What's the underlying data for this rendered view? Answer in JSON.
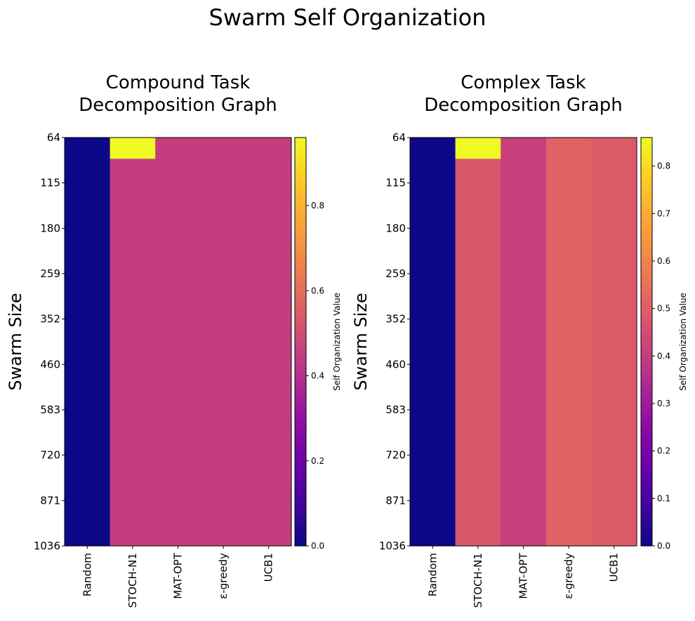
{
  "figure_title": "Swarm Self Organization",
  "chart_data": [
    {
      "type": "heatmap",
      "title": [
        "Compound Task",
        "Decomposition Graph"
      ],
      "ylabel": "Swarm Size",
      "colorbar_label": "Self Organization Value",
      "colormap": "plasma",
      "x_categories": [
        "Random",
        "STOCH-N1",
        "MAT-OPT",
        "ε-greedy",
        "UCB1"
      ],
      "y_ticks": [
        "64",
        "115",
        "180",
        "259",
        "352",
        "460",
        "583",
        "720",
        "871",
        "1036"
      ],
      "vmin": 0.0,
      "vmax": 0.96,
      "colorbar_ticks": [
        0.0,
        0.2,
        0.4,
        0.6,
        0.8
      ],
      "columns": [
        {
          "category": "Random",
          "value": 0.0
        },
        {
          "category": "STOCH-N1",
          "value": 0.45,
          "first_row_value": 0.96
        },
        {
          "category": "MAT-OPT",
          "value": 0.45
        },
        {
          "category": "ε-greedy",
          "value": 0.45
        },
        {
          "category": "UCB1",
          "value": 0.45
        }
      ]
    },
    {
      "type": "heatmap",
      "title": [
        "Complex Task",
        "Decomposition Graph"
      ],
      "ylabel": "Swarm Size",
      "colorbar_label": "Self Organization Value",
      "colormap": "plasma",
      "x_categories": [
        "Random",
        "STOCH-N1",
        "MAT-OPT",
        "ε-greedy",
        "UCB1"
      ],
      "y_ticks": [
        "64",
        "115",
        "180",
        "259",
        "352",
        "460",
        "583",
        "720",
        "871",
        "1036"
      ],
      "vmin": 0.0,
      "vmax": 0.86,
      "colorbar_ticks": [
        0.0,
        0.1,
        0.2,
        0.3,
        0.4,
        0.5,
        0.6,
        0.7,
        0.8
      ],
      "columns": [
        {
          "category": "Random",
          "value": 0.0
        },
        {
          "category": "STOCH-N1",
          "value": 0.48,
          "first_row_value": 0.86
        },
        {
          "category": "MAT-OPT",
          "value": 0.41
        },
        {
          "category": "ε-greedy",
          "value": 0.51
        },
        {
          "category": "UCB1",
          "value": 0.49
        }
      ]
    }
  ]
}
